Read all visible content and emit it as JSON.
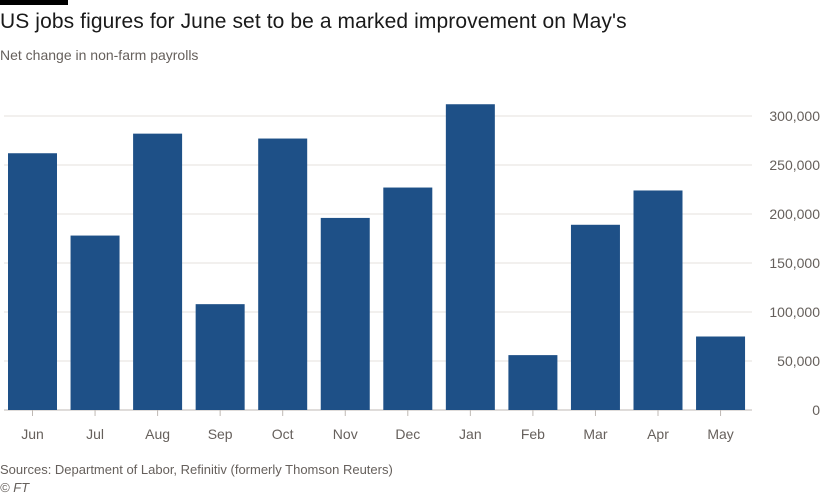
{
  "header": {
    "title": "US jobs figures for June set to be a marked improvement on May's",
    "subtitle": "Net change in non-farm payrolls"
  },
  "footer": {
    "sources": "Sources: Department of Labor, Refinitiv (formerly Thomson Reuters)",
    "credit": "© FT"
  },
  "colors": {
    "bar": "#1e5087",
    "grid": "#e6e2de",
    "axis": "#66605c"
  },
  "chart_data": {
    "type": "bar",
    "title": "US jobs figures for June set to be a marked improvement on May's",
    "subtitle": "Net change in non-farm payrolls",
    "categories": [
      "Jun",
      "Jul",
      "Aug",
      "Sep",
      "Oct",
      "Nov",
      "Dec",
      "Jan",
      "Feb",
      "Mar",
      "Apr",
      "May"
    ],
    "values": [
      262000,
      178000,
      282000,
      108000,
      277000,
      196000,
      227000,
      312000,
      56000,
      189000,
      224000,
      75000
    ],
    "ylim": [
      0,
      300000
    ],
    "yticks": [
      0,
      50000,
      100000,
      150000,
      200000,
      250000,
      300000
    ],
    "ytick_labels": [
      "0",
      "50,000",
      "100,000",
      "150,000",
      "200,000",
      "250,000",
      "300,000"
    ],
    "y_axis_side": "right",
    "grid": true,
    "xlabel": "",
    "ylabel": ""
  }
}
